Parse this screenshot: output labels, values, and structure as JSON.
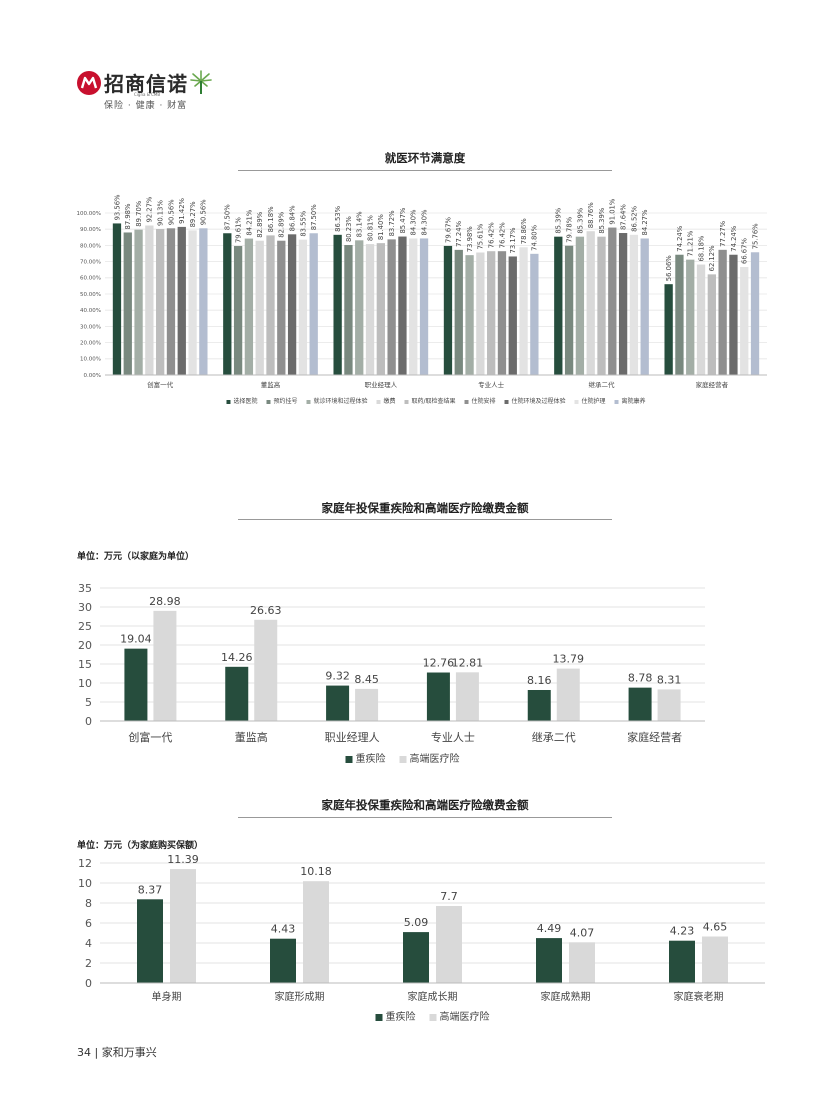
{
  "brand": {
    "name": "招商信诺",
    "name_en": "Cigna & CMB",
    "slogan": "保险 · 健康 · 财富",
    "colors": {
      "red": "#c8102e",
      "green": "#6aa84f"
    }
  },
  "footer": {
    "page_number": "34",
    "separator": "|",
    "title": "家和万事兴"
  },
  "chart_data": [
    {
      "type": "bar",
      "title": "就医环节满意度",
      "categories": [
        "创富一代",
        "董监高",
        "职业经理人",
        "专业人士",
        "继承二代",
        "家庭经营者"
      ],
      "ylim": [
        0,
        100
      ],
      "yticks": [
        "0.00%",
        "10.00%",
        "20.00%",
        "30.00%",
        "40.00%",
        "50.00%",
        "60.00%",
        "70.00%",
        "80.00%",
        "90.00%",
        "100.00%"
      ],
      "legend_position": "bottom",
      "series": [
        {
          "name": "选择医院",
          "color": "#264d3d",
          "values": [
            93.56,
            87.5,
            86.53,
            79.67,
            85.39,
            56.06
          ],
          "labels": [
            "93.56%",
            "87.50%",
            "86.53%",
            "79.67%",
            "85.39%",
            "56.06%"
          ]
        },
        {
          "name": "预约挂号",
          "color": "#79897f",
          "values": [
            87.98,
            79.61,
            80.23,
            77.24,
            79.78,
            74.24
          ],
          "labels": [
            "87.98%",
            "79.61%",
            "80.23%",
            "77.24%",
            "79.78%",
            "74.24%"
          ]
        },
        {
          "name": "就诊环境和过程体验",
          "color": "#a3aea6",
          "values": [
            89.7,
            84.21,
            83.14,
            73.98,
            85.39,
            71.21
          ],
          "labels": [
            "89.70%",
            "84.21%",
            "83.14%",
            "73.98%",
            "85.39%",
            "71.21%"
          ]
        },
        {
          "name": "缴费",
          "color": "#d9d9d9",
          "values": [
            92.27,
            82.89,
            80.81,
            75.61,
            88.76,
            68.18
          ],
          "labels": [
            "92.27%",
            "82.89%",
            "80.81%",
            "75.61%",
            "88.76%",
            "68.18%"
          ]
        },
        {
          "name": "取药/取检查结果",
          "color": "#bdbdbd",
          "values": [
            90.13,
            86.18,
            81.4,
            76.42,
            85.39,
            62.12
          ],
          "labels": [
            "90.13%",
            "86.18%",
            "81.40%",
            "76.42%",
            "85.39%",
            "62.12%"
          ]
        },
        {
          "name": "住院安排",
          "color": "#8f8f8f",
          "values": [
            90.56,
            82.89,
            83.72,
            76.42,
            91.01,
            77.27
          ],
          "labels": [
            "90.56%",
            "82.89%",
            "83.72%",
            "76.42%",
            "91.01%",
            "77.27%"
          ]
        },
        {
          "name": "住院环境及过程体验",
          "color": "#6b6b6b",
          "values": [
            91.42,
            86.84,
            85.47,
            73.17,
            87.64,
            74.24
          ],
          "labels": [
            "91.42%",
            "86.84%",
            "85.47%",
            "73.17%",
            "87.64%",
            "74.24%"
          ]
        },
        {
          "name": "住院护理",
          "color": "#e3e3e3",
          "values": [
            89.27,
            83.55,
            84.3,
            78.86,
            86.52,
            66.67
          ],
          "labels": [
            "89.27%",
            "83.55%",
            "84.30%",
            "78.86%",
            "86.52%",
            "66.67%"
          ]
        },
        {
          "name": "离院康养",
          "color": "#b3bdd0",
          "values": [
            90.56,
            87.5,
            84.3,
            74.8,
            84.27,
            75.76
          ],
          "labels": [
            "90.56%",
            "87.50%",
            "84.30%",
            "74.80%",
            "84.27%",
            "75.76%"
          ]
        }
      ]
    },
    {
      "type": "bar",
      "title": "家庭年投保重疾险和高端医疗险缴费金额",
      "unit_label": "单位：万元（以家庭为单位）",
      "categories": [
        "创富一代",
        "董监高",
        "职业经理人",
        "专业人士",
        "继承二代",
        "家庭经营者"
      ],
      "ylim": [
        0,
        35
      ],
      "yticks": [
        "0",
        "5",
        "10",
        "15",
        "20",
        "25",
        "30",
        "35"
      ],
      "legend_position": "bottom",
      "series": [
        {
          "name": "重疾险",
          "color": "#264d3d",
          "values": [
            19.04,
            14.26,
            9.32,
            12.76,
            8.16,
            8.78
          ],
          "labels": [
            "19.04",
            "14.26",
            "9.32",
            "12.76",
            "8.16",
            "8.78"
          ]
        },
        {
          "name": "高端医疗险",
          "color": "#d9d9d9",
          "values": [
            28.98,
            26.63,
            8.45,
            12.81,
            13.79,
            8.31
          ],
          "labels": [
            "28.98",
            "26.63",
            "8.45",
            "12.81",
            "13.79",
            "8.31"
          ]
        }
      ]
    },
    {
      "type": "bar",
      "title": "家庭年投保重疾险和高端医疗险缴费金额",
      "unit_label": "单位：万元（为家庭购买保额）",
      "categories": [
        "单身期",
        "家庭形成期",
        "家庭成长期",
        "家庭成熟期",
        "家庭衰老期"
      ],
      "ylim": [
        0,
        12
      ],
      "yticks": [
        "0",
        "2",
        "4",
        "6",
        "8",
        "10",
        "12"
      ],
      "legend_position": "bottom",
      "series": [
        {
          "name": "重疾险",
          "color": "#264d3d",
          "values": [
            8.37,
            4.43,
            5.09,
            4.49,
            4.23
          ],
          "labels": [
            "8.37",
            "4.43",
            "5.09",
            "4.49",
            "4.23"
          ]
        },
        {
          "name": "高端医疗险",
          "color": "#d9d9d9",
          "values": [
            11.39,
            10.18,
            7.7,
            4.07,
            4.65
          ],
          "labels": [
            "11.39",
            "10.18",
            "7.7",
            "4.07",
            "4.65"
          ]
        }
      ]
    }
  ]
}
